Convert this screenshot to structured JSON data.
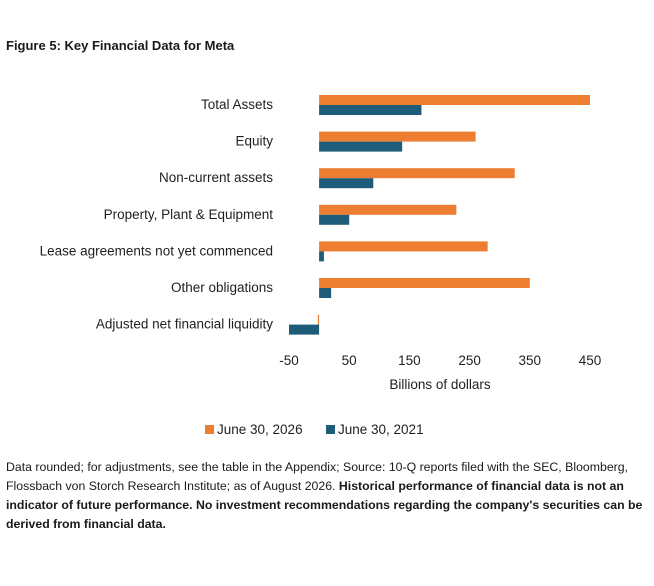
{
  "figure_title": "Figure 5: Key Financial Data for Meta",
  "colors": {
    "series_2026": "#ED7D31",
    "series_2021": "#1F5C7A"
  },
  "chart_data": {
    "type": "bar",
    "orientation": "horizontal",
    "categories": [
      "Total Assets",
      "Equity",
      "Non-current assets",
      "Property, Plant & Equipment",
      "Lease agreements not yet commenced",
      "Other obligations",
      "Adjusted net financial liquidity"
    ],
    "series": [
      {
        "name": "June 30, 2026",
        "values": [
          450,
          260,
          325,
          228,
          280,
          350,
          -2
        ]
      },
      {
        "name": "June 30, 2021",
        "values": [
          170,
          138,
          90,
          50,
          8,
          20,
          -50
        ]
      }
    ],
    "xlabel": "Billions of dollars",
    "ylabel": "",
    "xticks": [
      "-50",
      "50",
      "150",
      "250",
      "350",
      "450"
    ],
    "xlim": [
      -50,
      450
    ],
    "grid": false,
    "legend_position": "bottom"
  },
  "footnote": {
    "plain": "Data rounded; for adjustments, see the table in the Appendix; Source: 10-Q reports filed with the SEC, Bloomberg, Flossbach von Storch Research Institute; as of August 2026. ",
    "bold": "Historical performance of financial data is not an indicator of future performance. No investment recommendations regarding the company's securities can be derived from financial data."
  }
}
